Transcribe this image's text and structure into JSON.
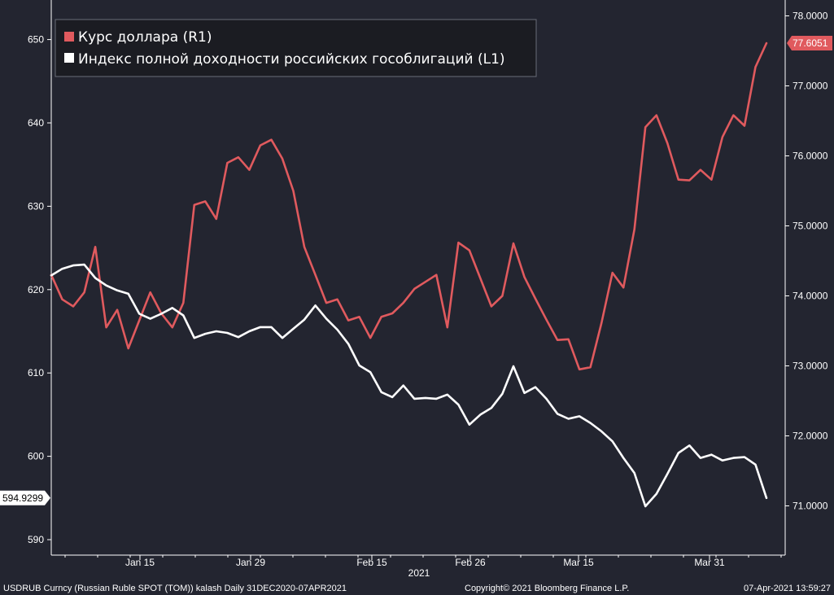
{
  "colors": {
    "background": "#232530",
    "usdrub": "#e05a5e",
    "bond_index": "#ffffff",
    "axis": "#ffffff",
    "grid": "#3a3d4a",
    "legend_bg": "#1b1c22"
  },
  "footer": {
    "left": "USDRUB Curncy (Russian Ruble SPOT (TOM)) kalash  Daily 31DEC2020-07APR2021",
    "center": "Copyright© 2021 Bloomberg Finance L.P.",
    "right": "07-Apr-2021 13:59:27"
  },
  "chart_data": {
    "type": "line",
    "legend": [
      {
        "name": "Курс доллара (R1)",
        "color": "#e05a5e"
      },
      {
        "name": "Индекс полной доходности российских гособлигаций (L1)",
        "color": "#ffffff"
      }
    ],
    "x_axis": {
      "ticks": [
        "Jan 15",
        "Jan 29",
        "Feb 15",
        "Feb 26",
        "Mar 15",
        "Mar 31"
      ],
      "year_label": "2021"
    },
    "y_left": {
      "range": [
        589,
        656
      ],
      "ticks": [
        "590",
        "600",
        "610",
        "620",
        "630",
        "640",
        "650"
      ],
      "last_value_label": "594.9299"
    },
    "y_right": {
      "range": [
        70.4,
        78.2
      ],
      "ticks": [
        "71.0000",
        "72.0000",
        "73.0000",
        "74.0000",
        "75.0000",
        "76.0000",
        "77.0000",
        "78.0000"
      ],
      "last_value_label": "77.6051"
    },
    "series": [
      {
        "name": "Курс доллара (R1)",
        "axis": "right",
        "values": [
          74.3,
          73.95,
          73.85,
          74.05,
          74.7,
          73.55,
          73.8,
          73.25,
          73.65,
          74.05,
          73.75,
          73.55,
          73.9,
          75.3,
          75.35,
          75.1,
          75.9,
          75.98,
          75.8,
          76.15,
          76.23,
          75.96,
          75.5,
          74.7,
          74.3,
          73.9,
          73.95,
          73.65,
          73.7,
          73.4,
          73.7,
          73.75,
          73.9,
          74.1,
          74.2,
          74.3,
          73.55,
          74.76,
          74.65,
          74.25,
          73.85,
          74.0,
          74.75,
          74.27,
          73.96,
          73.66,
          73.37,
          73.38,
          72.95,
          72.98,
          73.61,
          74.33,
          74.12,
          74.95,
          76.41,
          76.58,
          76.18,
          75.66,
          75.65,
          75.8,
          75.66,
          76.27,
          76.58,
          76.43,
          77.27,
          77.61
        ]
      },
      {
        "name": "Индекс полной доходности российских гособлигаций (L1)",
        "axis": "left",
        "values": [
          621.7,
          622.5,
          622.9,
          623.0,
          621.4,
          620.5,
          619.9,
          619.5,
          617.1,
          616.5,
          617.1,
          617.8,
          616.9,
          614.2,
          614.7,
          615.0,
          614.8,
          614.3,
          615.0,
          615.5,
          615.5,
          614.2,
          615.3,
          616.4,
          618.1,
          616.5,
          615.2,
          613.5,
          610.9,
          610.1,
          607.7,
          607.1,
          608.5,
          606.9,
          607.0,
          606.9,
          607.4,
          606.2,
          603.8,
          605.0,
          605.8,
          607.5,
          610.8,
          607.6,
          608.3,
          606.9,
          605.1,
          604.5,
          604.8,
          604.0,
          603.0,
          601.8,
          599.8,
          598.0,
          594.0,
          595.5,
          597.9,
          600.4,
          601.3,
          599.8,
          600.2,
          599.5,
          599.8,
          599.9,
          599.0,
          595.0
        ]
      }
    ]
  }
}
